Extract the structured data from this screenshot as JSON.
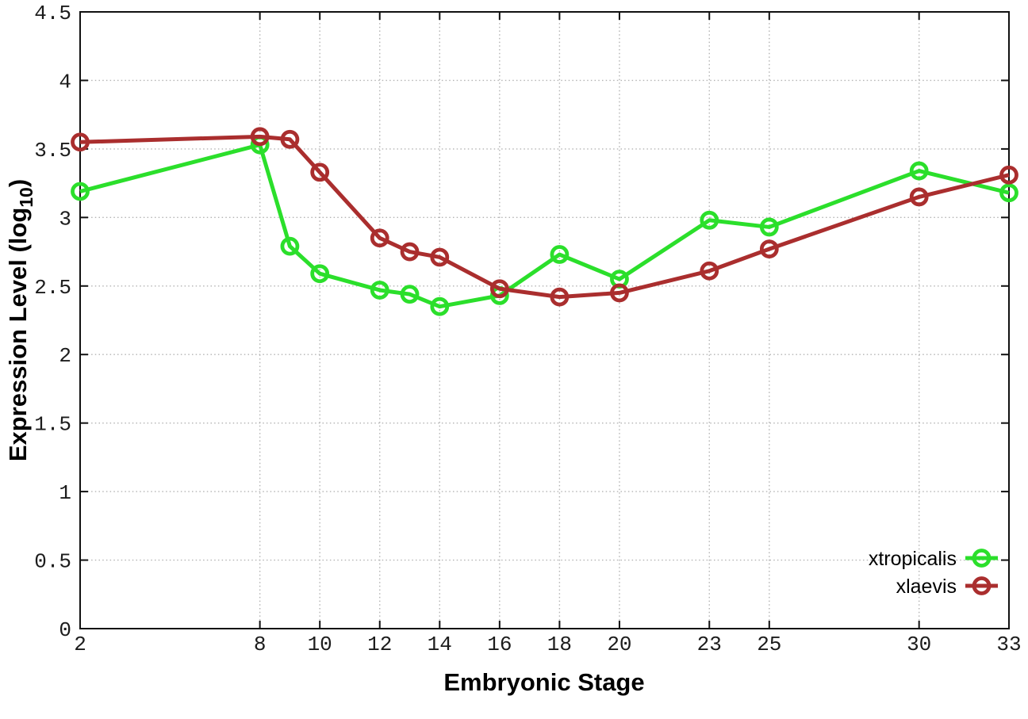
{
  "chart_data": {
    "type": "line",
    "title": "",
    "xlabel": "Embryonic Stage",
    "ylabel": "Expression Level (log10)",
    "ylabel_parts": {
      "main": "Expression Level (log",
      "sub": "10",
      "close": ")"
    },
    "x": [
      2,
      8,
      9,
      10,
      12,
      13,
      14,
      16,
      18,
      20,
      23,
      25,
      30,
      33
    ],
    "x_ticks": [
      2,
      8,
      10,
      12,
      14,
      16,
      18,
      20,
      23,
      25,
      30,
      33
    ],
    "x_tick_labels": [
      "2",
      "8",
      "10",
      "12",
      "14",
      "16",
      "18",
      "20",
      "23",
      "25",
      "30",
      "33"
    ],
    "y_ticks": [
      0,
      0.5,
      1,
      1.5,
      2,
      2.5,
      3,
      3.5,
      4,
      4.5
    ],
    "y_tick_labels": [
      "0",
      "0.5",
      "1",
      "1.5",
      "2",
      "2.5",
      "3",
      "3.5",
      "4",
      "4.5"
    ],
    "xlim": [
      2,
      33
    ],
    "ylim": [
      0,
      4.5
    ],
    "grid": true,
    "grid_style": "dotted",
    "legend_position": "bottom-right-inside",
    "axis_color": "#111111",
    "grid_color": "#b3b3b3",
    "series": [
      {
        "name": "xtropicalis",
        "color": "#2bdf2b",
        "marker": "open-circle",
        "values": [
          3.19,
          3.53,
          2.79,
          2.59,
          2.47,
          2.44,
          2.35,
          2.43,
          2.73,
          2.55,
          2.98,
          2.93,
          3.34,
          3.18
        ]
      },
      {
        "name": "xlaevis",
        "color": "#aa2e2e",
        "marker": "open-circle",
        "values": [
          3.55,
          3.59,
          3.57,
          3.33,
          2.85,
          2.75,
          2.71,
          2.48,
          2.42,
          2.45,
          2.61,
          2.77,
          3.15,
          3.31
        ]
      }
    ]
  }
}
